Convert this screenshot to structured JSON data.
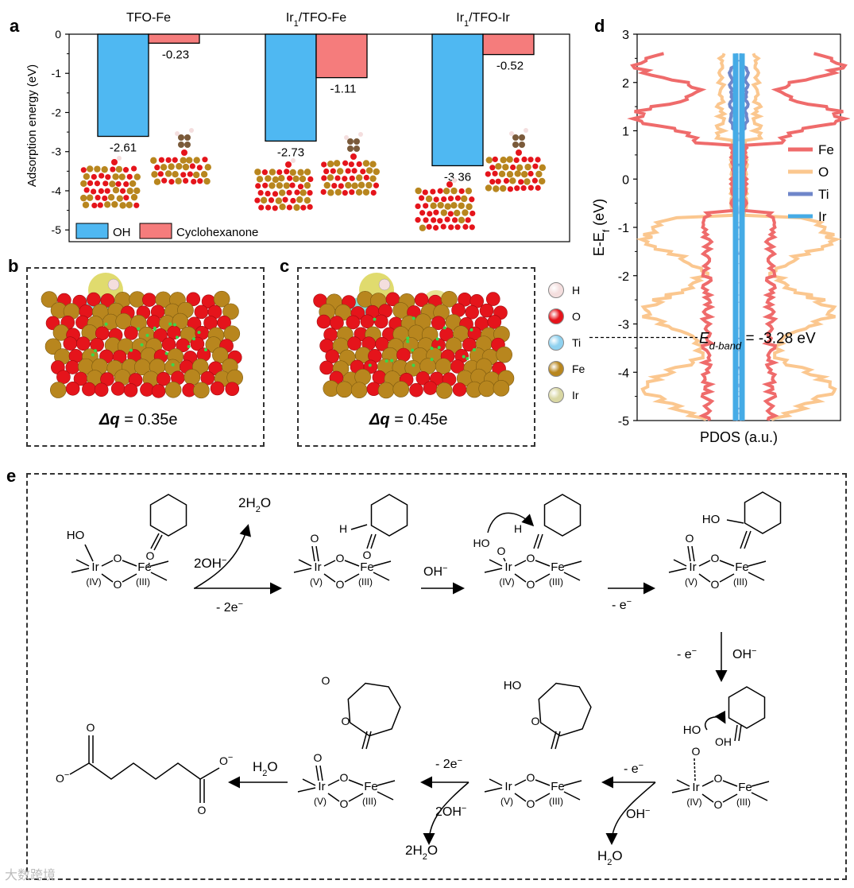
{
  "panels": {
    "a": "a",
    "b": "b",
    "c": "c",
    "d": "d",
    "e": "e"
  },
  "chart_data": [
    {
      "type": "bar",
      "categories": [
        "TFO-Fe",
        "Ir1/TFO-Fe",
        "Ir1/TFO-Ir"
      ],
      "category_labels": [
        {
          "main": "TFO-Fe",
          "pre": "",
          "sub": "",
          "post": ""
        },
        {
          "main": "",
          "pre": "Ir",
          "sub": "1",
          "post": "/TFO-Fe"
        },
        {
          "main": "",
          "pre": "Ir",
          "sub": "1",
          "post": "/TFO-Ir"
        }
      ],
      "series": [
        {
          "name": "OH",
          "values": [
            -2.61,
            -2.73,
            -3.36
          ],
          "labels": [
            "-2.61",
            "-2.73",
            "-3.36"
          ],
          "color": "#4fb8f2"
        },
        {
          "name": "Cyclohexanone",
          "values": [
            -0.23,
            -1.11,
            -0.52
          ],
          "labels": [
            "-0.23",
            "-1.11",
            "-0.52"
          ],
          "color": "#f57c7c"
        }
      ],
      "ylabel": "Adsorption energy (eV)",
      "ylim": [
        -5.3,
        0
      ],
      "yticks": [
        "0",
        "-1",
        "-2",
        "-3",
        "-4",
        "-5"
      ],
      "legend_position": "bottom-left"
    },
    {
      "type": "line",
      "orientation": "vertical",
      "xlabel": "PDOS (a.u.)",
      "ylabel_main": "E-E",
      "ylabel_sub": "f",
      "ylabel_unit": " (eV)",
      "ylim": [
        -5,
        3
      ],
      "yticks": [
        "3",
        "2",
        "1",
        "0",
        "-1",
        "-2",
        "-3",
        "-4",
        "-5"
      ],
      "series": [
        {
          "name": "Fe",
          "color": "#ef6b6b"
        },
        {
          "name": "O",
          "color": "#fbc78f"
        },
        {
          "name": "Ti",
          "color": "#6f86c9"
        },
        {
          "name": "Ir",
          "color": "#45abe6"
        }
      ],
      "annotation": {
        "value": -3.28,
        "text_main": "E",
        "text_sub": "d-band",
        "text_rest": " = -3.28 eV"
      },
      "legend_position": "right"
    }
  ],
  "charge": {
    "b": {
      "symbol": "Δq",
      "value": " = 0.35e"
    },
    "c": {
      "symbol": "Δq",
      "value": " = 0.45e"
    }
  },
  "atom_legend": [
    {
      "label": "H",
      "color": "#f4dede"
    },
    {
      "label": "O",
      "color": "#e5141b"
    },
    {
      "label": "Ti",
      "color": "#8fd1ef"
    },
    {
      "label": "Fe",
      "color": "#b8861e"
    },
    {
      "label": "Ir",
      "color": "#d9d7a3"
    }
  ],
  "scheme": {
    "twoH2O": "2H",
    "twoH2O_sub": "2",
    "twoH2O_end": "O",
    "twoOH": "2OH",
    "minus": "−",
    "minus2e": "- 2e",
    "ohm": "OH",
    "minus_e": "- e",
    "h2o": "H",
    "h2o_sub": "2",
    "h2o_end": "O",
    "ir": "Ir",
    "fe": "Fe",
    "o": "O",
    "ho": "HO",
    "h": "H",
    "ox_iv": "(IV)",
    "ox_v": "(V)",
    "ox_iii": "(III)",
    "o_minus": "O"
  },
  "watermark": "大数跨境"
}
